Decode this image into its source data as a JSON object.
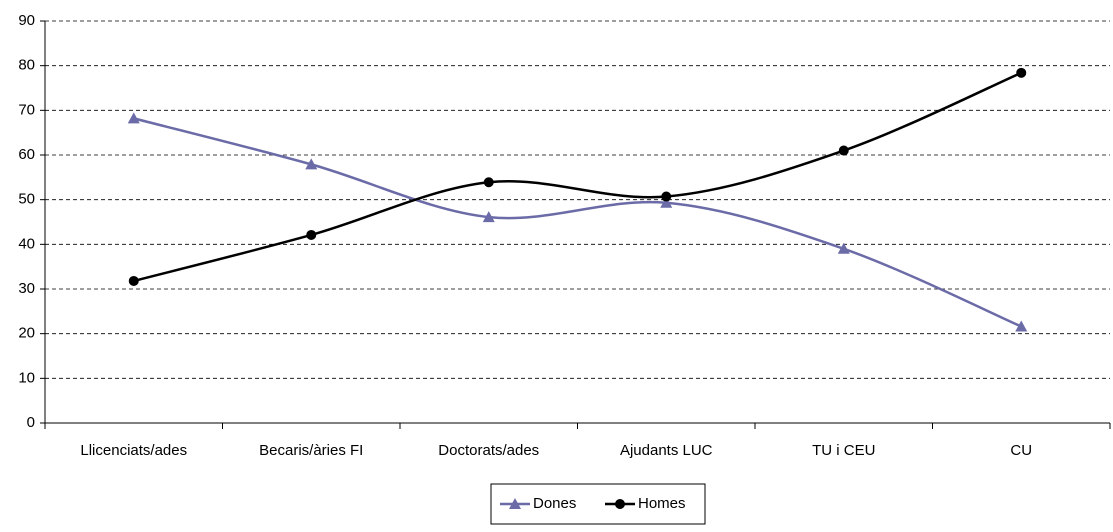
{
  "chart_data": {
    "type": "line",
    "categories": [
      "Llicenciats/ades",
      "Becaris/àries FI",
      "Doctorats/ades",
      "Ajudants LUC",
      "TU i CEU",
      "CU"
    ],
    "series": [
      {
        "name": "Dones",
        "color": "#6b6ba8",
        "marker": "triangle",
        "values": [
          68.2,
          57.9,
          46.1,
          49.3,
          39.0,
          21.6
        ]
      },
      {
        "name": "Homes",
        "color": "#000000",
        "marker": "circle",
        "values": [
          31.8,
          42.1,
          53.9,
          50.7,
          61.0,
          78.4
        ]
      }
    ],
    "ylim": [
      0,
      90
    ],
    "yticks": [
      0,
      10,
      20,
      30,
      40,
      50,
      60,
      70,
      80,
      90
    ],
    "grid": true,
    "smooth": true,
    "legend": "bottom"
  }
}
